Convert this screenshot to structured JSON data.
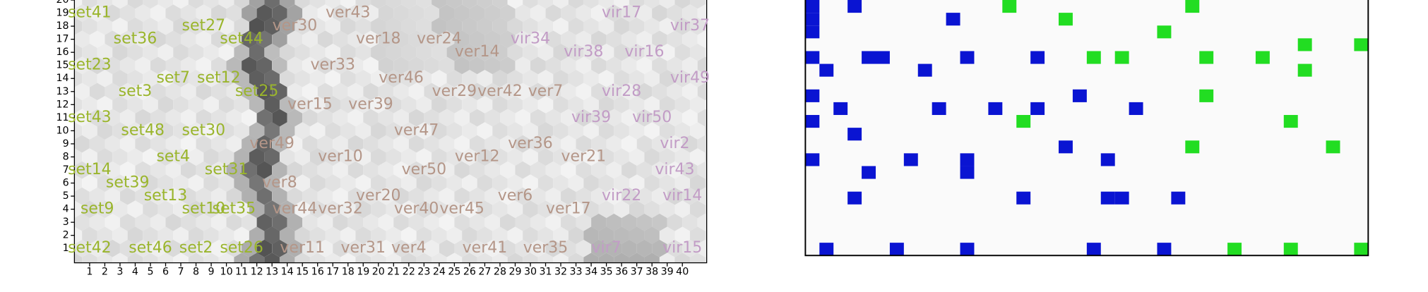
{
  "chart_data": [
    {
      "type": "som_labels",
      "xlim": [
        0,
        41.6
      ],
      "ylim": [
        -0.1,
        21
      ],
      "xticks": [
        1,
        2,
        3,
        4,
        5,
        6,
        7,
        8,
        9,
        10,
        11,
        12,
        13,
        14,
        15,
        16,
        17,
        18,
        19,
        20,
        21,
        22,
        23,
        24,
        25,
        26,
        27,
        28,
        29,
        30,
        31,
        32,
        33,
        34,
        35,
        36,
        37,
        38,
        39,
        40
      ],
      "yticks": [
        1,
        2,
        3,
        4,
        5,
        6,
        7,
        8,
        9,
        10,
        11,
        12,
        13,
        14,
        15,
        16,
        17,
        18,
        19,
        20
      ],
      "series": [
        {
          "color": "#9ab52c",
          "labels": [
            {
              "text": "set41",
              "x": 1,
              "y": 19
            },
            {
              "text": "set27",
              "x": 8.5,
              "y": 18
            },
            {
              "text": "set36",
              "x": 4,
              "y": 17
            },
            {
              "text": "set44",
              "x": 11,
              "y": 17
            },
            {
              "text": "set23",
              "x": 1,
              "y": 15
            },
            {
              "text": "set7",
              "x": 6.5,
              "y": 14
            },
            {
              "text": "set12",
              "x": 9.5,
              "y": 14
            },
            {
              "text": "set3",
              "x": 4,
              "y": 13
            },
            {
              "text": "set25",
              "x": 12,
              "y": 13
            },
            {
              "text": "set43",
              "x": 1,
              "y": 11
            },
            {
              "text": "set48",
              "x": 4.5,
              "y": 10
            },
            {
              "text": "set30",
              "x": 8.5,
              "y": 10
            },
            {
              "text": "set4",
              "x": 6.5,
              "y": 8
            },
            {
              "text": "set14",
              "x": 1,
              "y": 7
            },
            {
              "text": "set31",
              "x": 10,
              "y": 7
            },
            {
              "text": "set39",
              "x": 3.5,
              "y": 6
            },
            {
              "text": "set13",
              "x": 6,
              "y": 5
            },
            {
              "text": "set9",
              "x": 1.5,
              "y": 4
            },
            {
              "text": "set10",
              "x": 8.5,
              "y": 4
            },
            {
              "text": "set35",
              "x": 10.5,
              "y": 4
            },
            {
              "text": "set42",
              "x": 1,
              "y": 1
            },
            {
              "text": "set46",
              "x": 5,
              "y": 1
            },
            {
              "text": "set2",
              "x": 8,
              "y": 1
            },
            {
              "text": "set26",
              "x": 11,
              "y": 1
            }
          ]
        },
        {
          "color": "#b49688",
          "labels": [
            {
              "text": "ver43",
              "x": 18,
              "y": 19
            },
            {
              "text": "ver30",
              "x": 14.5,
              "y": 18
            },
            {
              "text": "ver18",
              "x": 20,
              "y": 17
            },
            {
              "text": "ver24",
              "x": 24,
              "y": 17
            },
            {
              "text": "ver14",
              "x": 26.5,
              "y": 16
            },
            {
              "text": "ver33",
              "x": 17,
              "y": 15
            },
            {
              "text": "ver46",
              "x": 21.5,
              "y": 14
            },
            {
              "text": "ver29",
              "x": 25,
              "y": 13
            },
            {
              "text": "ver42",
              "x": 28,
              "y": 13
            },
            {
              "text": "ver7",
              "x": 31,
              "y": 13
            },
            {
              "text": "ver15",
              "x": 15.5,
              "y": 12
            },
            {
              "text": "ver39",
              "x": 19.5,
              "y": 12
            },
            {
              "text": "ver47",
              "x": 22.5,
              "y": 10
            },
            {
              "text": "ver49",
              "x": 13,
              "y": 9
            },
            {
              "text": "ver36",
              "x": 30,
              "y": 9
            },
            {
              "text": "ver10",
              "x": 17.5,
              "y": 8
            },
            {
              "text": "ver12",
              "x": 26.5,
              "y": 8
            },
            {
              "text": "ver21",
              "x": 33.5,
              "y": 8
            },
            {
              "text": "ver50",
              "x": 23,
              "y": 7
            },
            {
              "text": "ver8",
              "x": 13.5,
              "y": 6
            },
            {
              "text": "ver20",
              "x": 20,
              "y": 5
            },
            {
              "text": "ver6",
              "x": 29,
              "y": 5
            },
            {
              "text": "ver44",
              "x": 14.5,
              "y": 4
            },
            {
              "text": "ver32",
              "x": 17.5,
              "y": 4
            },
            {
              "text": "ver40",
              "x": 22.5,
              "y": 4
            },
            {
              "text": "ver45",
              "x": 25.5,
              "y": 4
            },
            {
              "text": "ver17",
              "x": 32.5,
              "y": 4
            },
            {
              "text": "ver11",
              "x": 15,
              "y": 1
            },
            {
              "text": "ver31",
              "x": 19,
              "y": 1
            },
            {
              "text": "ver4",
              "x": 22,
              "y": 1
            },
            {
              "text": "ver41",
              "x": 27,
              "y": 1
            },
            {
              "text": "ver35",
              "x": 31,
              "y": 1
            }
          ]
        },
        {
          "color": "#c29cc6",
          "labels": [
            {
              "text": "vir17",
              "x": 36,
              "y": 19
            },
            {
              "text": "vir37",
              "x": 40.5,
              "y": 18
            },
            {
              "text": "vir34",
              "x": 30,
              "y": 17
            },
            {
              "text": "vir38",
              "x": 33.5,
              "y": 16
            },
            {
              "text": "vir16",
              "x": 37.5,
              "y": 16
            },
            {
              "text": "vir49",
              "x": 40.5,
              "y": 14
            },
            {
              "text": "vir28",
              "x": 36,
              "y": 13
            },
            {
              "text": "vir39",
              "x": 34,
              "y": 11
            },
            {
              "text": "vir50",
              "x": 38,
              "y": 11
            },
            {
              "text": "vir2",
              "x": 39.5,
              "y": 9
            },
            {
              "text": "vir43",
              "x": 39.5,
              "y": 7
            },
            {
              "text": "vir22",
              "x": 36,
              "y": 5
            },
            {
              "text": "vir14",
              "x": 40,
              "y": 5
            },
            {
              "text": "vir7",
              "x": 35,
              "y": 1
            },
            {
              "text": "vir15",
              "x": 40,
              "y": 1
            }
          ]
        }
      ]
    },
    {
      "type": "cell_map",
      "xlim": [
        0.5,
        40.5
      ],
      "ylim": [
        0.5,
        20.5
      ],
      "series": [
        {
          "color": "#0a14d2",
          "x": [
            1,
            1,
            1,
            4,
            11,
            1,
            5,
            6,
            12,
            17,
            2,
            9,
            1,
            20,
            3,
            10,
            14,
            17,
            24,
            1,
            4,
            19,
            1,
            8,
            12,
            22,
            5,
            12,
            4,
            16,
            22,
            23,
            27,
            2,
            7,
            12,
            21,
            26
          ],
          "y": [
            20,
            19,
            18,
            20,
            19,
            16,
            16,
            16,
            16,
            16,
            15,
            15,
            13,
            13,
            12,
            12,
            12,
            12,
            12,
            11,
            10,
            9,
            8,
            8,
            8,
            8,
            7,
            7,
            5,
            5,
            5,
            5,
            5,
            1,
            1,
            1,
            1,
            1
          ]
        },
        {
          "color": "#22dd22",
          "x": [
            15,
            28,
            19,
            26,
            36,
            40,
            21,
            23,
            29,
            33,
            36,
            29,
            16,
            35,
            28,
            38,
            31,
            35,
            40
          ],
          "y": [
            20,
            20,
            19,
            18,
            17,
            17,
            16,
            16,
            16,
            16,
            15,
            13,
            11,
            11,
            9,
            9,
            1,
            1,
            1
          ]
        }
      ]
    }
  ]
}
